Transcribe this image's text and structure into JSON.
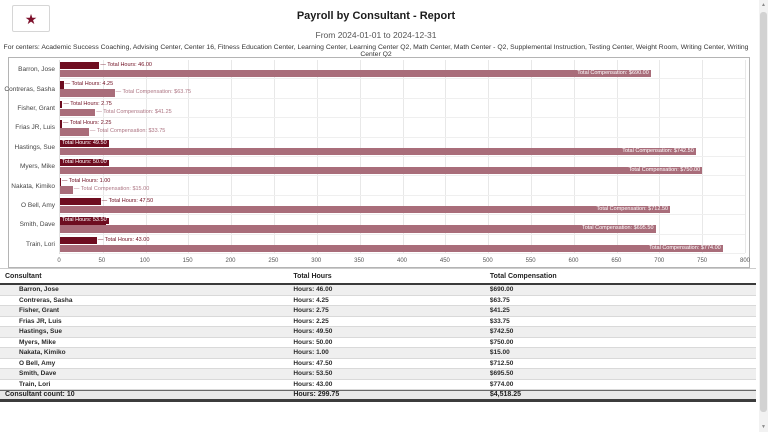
{
  "header": {
    "title": "Payroll by Consultant - Report",
    "date_range": "From 2024-01-01 to 2024-12-31",
    "centers_line": "For centers: Academic Success Coaching, Advising Center, Center 16, Fitness Education Center, Learning Center, Learning Center Q2, Math Center, Math Center - Q2, Supplemental Instruction, Testing Center, Weight Room, Writing Center, Writing Center Q2",
    "favorite_icon": "star-icon"
  },
  "colors": {
    "hours_bar": "#6e0d20",
    "compensation_bar": "#a96d7a",
    "hours_label_text": "#6e0d20",
    "compensation_label_text": "#ad7583",
    "star": "#7d102b"
  },
  "chart_data": {
    "type": "bar",
    "orientation": "horizontal",
    "title": "",
    "xlabel": "",
    "ylabel": "",
    "xlim": [
      0,
      800
    ],
    "x_ticks": [
      0,
      50,
      100,
      150,
      200,
      250,
      300,
      350,
      400,
      450,
      500,
      550,
      600,
      650,
      700,
      750,
      800
    ],
    "grid": true,
    "categories": [
      "Barron, Jose",
      "Contreras, Sasha",
      "Fisher, Grant",
      "Frias JR, Luis",
      "Hastings, Sue",
      "Myers, Mike",
      "Nakata, Kimiko",
      "O Bell, Amy",
      "Smith, Dave",
      "Train, Lori"
    ],
    "series": [
      {
        "name": "Total Hours",
        "values": [
          46.0,
          4.25,
          2.75,
          2.25,
          49.5,
          50.0,
          1.0,
          47.5,
          53.5,
          43.0
        ],
        "labels": [
          "Total Hours: 46.00",
          "Total Hours: 4.25",
          "Total Hours: 2.75",
          "Total Hours: 2.25",
          "Total Hours: 49.50",
          "Total Hours: 50.00",
          "Total Hours: 1.00",
          "Total Hours: 47.50",
          "Total Hours: 53.50",
          "Total Hours: 43.00"
        ]
      },
      {
        "name": "Total Compensation",
        "values": [
          690.0,
          63.75,
          41.25,
          33.75,
          742.5,
          750.0,
          15.0,
          712.5,
          695.5,
          774.0
        ],
        "labels": [
          "Total Compensation: $690.00",
          "Total Compensation: $63.75",
          "Total Compensation: $41.25",
          "Total Compensation: $33.75",
          "Total Compensation: $742.50",
          "Total Compensation: $750.00",
          "Total Compensation: $15.00",
          "Total Compensation: $712.50",
          "Total Compensation: $695.50",
          "Total Compensation: $774.00"
        ]
      }
    ]
  },
  "table": {
    "columns": [
      "Consultant",
      "Total Hours",
      "Total Compensation"
    ],
    "rows": [
      {
        "consultant": "Barron, Jose",
        "hours": "Hours: 46.00",
        "compensation": "$690.00"
      },
      {
        "consultant": "Contreras, Sasha",
        "hours": "Hours: 4.25",
        "compensation": "$63.75"
      },
      {
        "consultant": "Fisher, Grant",
        "hours": "Hours: 2.75",
        "compensation": "$41.25"
      },
      {
        "consultant": "Frias JR, Luis",
        "hours": "Hours: 2.25",
        "compensation": "$33.75"
      },
      {
        "consultant": "Hastings, Sue",
        "hours": "Hours: 49.50",
        "compensation": "$742.50"
      },
      {
        "consultant": "Myers, Mike",
        "hours": "Hours: 50.00",
        "compensation": "$750.00"
      },
      {
        "consultant": "Nakata, Kimiko",
        "hours": "Hours: 1.00",
        "compensation": "$15.00"
      },
      {
        "consultant": "O Bell, Amy",
        "hours": "Hours: 47.50",
        "compensation": "$712.50"
      },
      {
        "consultant": "Smith, Dave",
        "hours": "Hours: 53.50",
        "compensation": "$695.50"
      },
      {
        "consultant": "Train, Lori",
        "hours": "Hours: 43.00",
        "compensation": "$774.00"
      }
    ],
    "footer": {
      "count": "Consultant count: 10",
      "hours": "Hours: 299.75",
      "compensation": "$4,518.25"
    }
  },
  "scrollbar": {
    "up_icon": "scroll-up-icon",
    "down_icon": "scroll-down-icon"
  }
}
